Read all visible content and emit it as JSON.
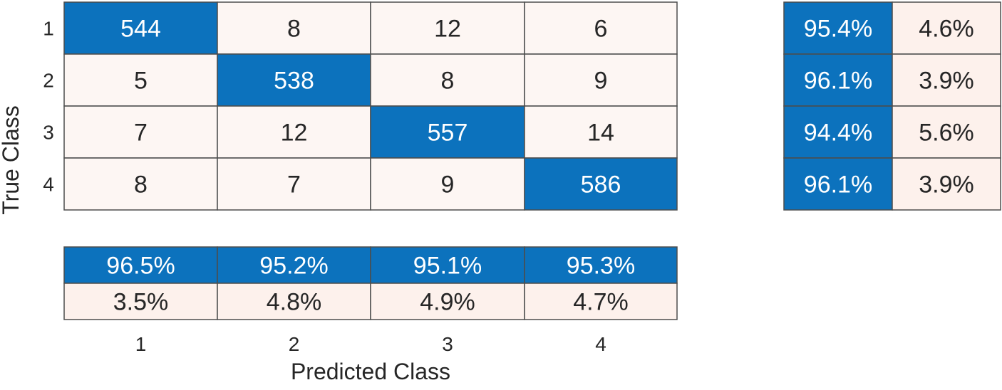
{
  "chart_data": {
    "type": "heatmap",
    "title": "",
    "xlabel": "Predicted Class",
    "ylabel": "True Class",
    "row_labels": [
      "1",
      "2",
      "3",
      "4"
    ],
    "col_labels": [
      "1",
      "2",
      "3",
      "4"
    ],
    "matrix": [
      [
        544,
        8,
        12,
        6
      ],
      [
        5,
        538,
        8,
        9
      ],
      [
        7,
        12,
        557,
        14
      ],
      [
        8,
        7,
        9,
        586
      ]
    ],
    "row_summary": [
      {
        "correct": "95.4%",
        "incorrect": "4.6%"
      },
      {
        "correct": "96.1%",
        "incorrect": "3.9%"
      },
      {
        "correct": "94.4%",
        "incorrect": "5.6%"
      },
      {
        "correct": "96.1%",
        "incorrect": "3.9%"
      }
    ],
    "column_summary": [
      {
        "correct": "96.5%",
        "incorrect": "3.5%"
      },
      {
        "correct": "95.2%",
        "incorrect": "4.8%"
      },
      {
        "correct": "95.1%",
        "incorrect": "4.9%"
      },
      {
        "correct": "95.3%",
        "incorrect": "4.7%"
      }
    ],
    "colors": {
      "diagonal": "#0c72bd",
      "summary_correct": "#0c72bd",
      "off_diagonal": "#fdf6f3",
      "summary_incorrect": "#fdf1ec",
      "grid": "#4d4d4d",
      "text_dark": "#262626",
      "text_light": "#ffffff"
    }
  }
}
